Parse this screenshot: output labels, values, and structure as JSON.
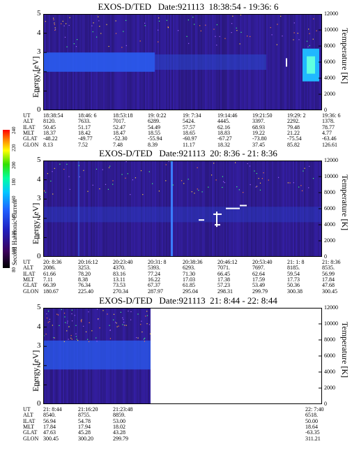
{
  "chart_data": [
    {
      "type": "heatmap",
      "title": "EXOS-D/TED   Date:921113  18:38:54 - 19:36: 6",
      "ylabel": "Energy [eV]",
      "y2label": "Temperature [K]",
      "ylim": [
        0,
        5
      ],
      "y2lim": [
        0,
        12000
      ],
      "yticks": [
        0,
        1,
        2,
        3,
        4,
        5
      ],
      "y2ticks": [
        0,
        2000,
        4000,
        6000,
        8000,
        10000,
        12000
      ],
      "ephemeris": {
        "labels": [
          "UT",
          "ALT",
          "ILAT",
          "MLT",
          "GLAT",
          "GLON"
        ],
        "columns": [
          [
            "18:38:54",
            "8120.",
            "50.45",
            "18.37",
            "-48.22",
            "8.13"
          ],
          [
            "18:46: 6",
            "7633.",
            "51.17",
            "18.42",
            "-49.77",
            "7.52"
          ],
          [
            "18:53:18",
            "7017.",
            "52.47",
            "18.47",
            "-52.30",
            "7.48"
          ],
          [
            "19: 0:22",
            "6289.",
            "54.49",
            "18.55",
            "-55.94",
            "8.39"
          ],
          [
            "19: 7:34",
            "5424.",
            "57.57",
            "18.65",
            "-60.97",
            "11.17"
          ],
          [
            "19:14:46",
            "4445.",
            "62.16",
            "18.83",
            "-67.27",
            "18.32"
          ],
          [
            "19:21:50",
            "3397.",
            "68.93",
            "19.22",
            "-73.80",
            "37.45"
          ],
          [
            "19:29: 2",
            "2292.",
            "79.48",
            "21.22",
            "-75.54",
            "85.82"
          ],
          [
            "19:36: 6",
            "1378.",
            "78.77",
            "4.77",
            "-63.46",
            "126.61"
          ]
        ]
      }
    },
    {
      "type": "heatmap",
      "title": "EXOS-D/TED   Date:921113  20: 8:36 - 21: 8:36",
      "ylabel": "Energy [eV]",
      "y2label": "Temperature [K]",
      "ylim": [
        0,
        5
      ],
      "y2lim": [
        0,
        12000
      ],
      "yticks": [
        0,
        1,
        2,
        3,
        4,
        5
      ],
      "y2ticks": [
        0,
        2000,
        4000,
        6000,
        8000,
        10000,
        12000
      ],
      "ephemeris": {
        "labels": [
          "UT",
          "ALT",
          "ILAT",
          "MLT",
          "GLAT",
          "GLON"
        ],
        "columns": [
          [
            "20: 8:36",
            "2086.",
            "61.66",
            "7.11",
            "66.39",
            "180.67"
          ],
          [
            "20:16:12",
            "3253.",
            "78.20",
            "8.38",
            "76.34",
            "225.40"
          ],
          [
            "20:23:40",
            "4370.",
            "83.16",
            "13.11",
            "73.53",
            "270.34"
          ],
          [
            "20:31: 8",
            "5393.",
            "77.24",
            "16.22",
            "67.37",
            "287.97"
          ],
          [
            "20:38:36",
            "6293.",
            "71.30",
            "17.03",
            "61.85",
            "295.04"
          ],
          [
            "20:46:12",
            "7071.",
            "66.45",
            "17.38",
            "57.23",
            "298.31"
          ],
          [
            "20:53:40",
            "7697.",
            "62.64",
            "17.59",
            "53.49",
            "299.79"
          ],
          [
            "21: 1: 8",
            "8185.",
            "59.54",
            "17.73",
            "50.36",
            "300.38"
          ],
          [
            "21: 8:36",
            "8535.",
            "56.99",
            "17.84",
            "47.68",
            "300.45"
          ]
        ]
      },
      "colorbar": {
        "label": "Second Harmonic Current",
        "ticks": [
          "80",
          "100",
          "120",
          "140",
          "160",
          "180",
          "200",
          "220",
          "240"
        ]
      }
    },
    {
      "type": "heatmap",
      "title": "EXOS-D/TED   Date:921113  21: 8:44 - 22: 8:44",
      "ylabel": "Energy [eV]",
      "y2label": "Temperature [K]",
      "ylim": [
        0,
        5
      ],
      "y2lim": [
        0,
        12000
      ],
      "yticks": [
        0,
        1,
        2,
        3,
        4,
        5
      ],
      "y2ticks": [
        0,
        2000,
        4000,
        6000,
        8000,
        10000,
        12000
      ],
      "ephemeris": {
        "labels": [
          "UT",
          "ALT",
          "ILAT",
          "MLT",
          "GLAT",
          "GLON"
        ],
        "columns": [
          [
            "21: 8:44",
            "8540.",
            "56.94",
            "17.84",
            "47.63",
            "300.45"
          ],
          [
            "21:16:20",
            "8755.",
            "54.78",
            "17.94",
            "45.28",
            "300.20"
          ],
          [
            "21:23:48",
            "8859.",
            "53.00",
            "18.02",
            "43.28",
            "299.79"
          ],
          [
            "22: 7:40",
            "6518.",
            "50.00",
            "18.64",
            "-63.35",
            "311.21"
          ]
        ]
      }
    }
  ]
}
